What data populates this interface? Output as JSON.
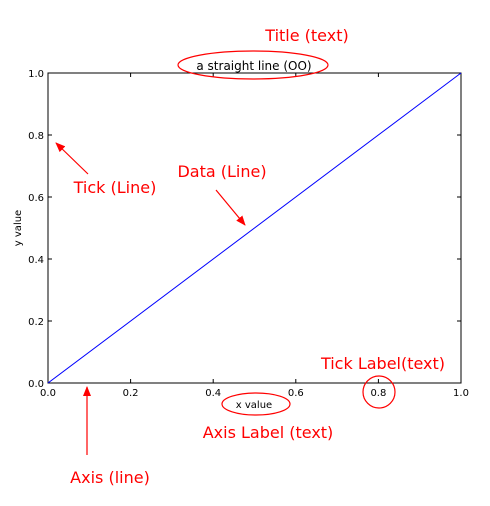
{
  "chart_data": {
    "type": "line",
    "title": "a straight line (OO)",
    "xlabel": "x value",
    "ylabel": "y value",
    "xlim": [
      0,
      1
    ],
    "ylim": [
      0,
      1
    ],
    "x_ticks": [
      "0.0",
      "0.2",
      "0.4",
      "0.6",
      "0.8",
      "1.0"
    ],
    "y_ticks": [
      "0.0",
      "0.2",
      "0.4",
      "0.6",
      "0.8",
      "1.0"
    ],
    "grid": false,
    "series": [
      {
        "x": [
          0,
          1
        ],
        "y": [
          0,
          1
        ],
        "color": "#0000ff"
      }
    ]
  },
  "annotations": {
    "title_note": "Title (text)",
    "tick_note": "Tick (Line)",
    "data_note": "Data (Line)",
    "tick_label_note": "Tick Label(text)",
    "axis_label_note": "Axis Label (text)",
    "axis_note": "Axis (line)"
  },
  "colors": {
    "annotation": "#ff0000",
    "line": "#0000ff",
    "axes": "#000000"
  }
}
